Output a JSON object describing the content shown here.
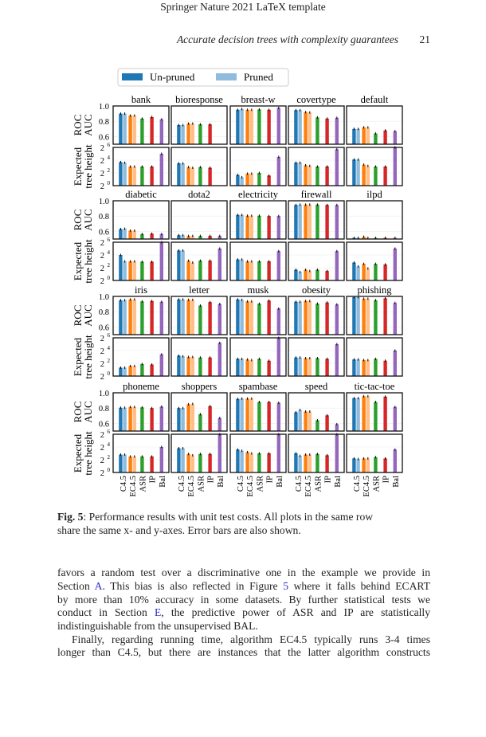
{
  "header": {
    "title": "Springer Nature 2021 LaTeX template",
    "running_head": "Accurate decision trees with complexity guarantees",
    "page_number": "21"
  },
  "caption": {
    "label": "Fig. 5",
    "text_line1": ": Performance results with unit test costs. All plots in the same row",
    "text_line2": "share the same x- and y-axes. Error bars are also shown."
  },
  "body": {
    "l1": "favors a random test over a discriminative one in the example we provide in",
    "l2a": "Section ",
    "l2_link1": "A",
    "l2b": ". This bias is also reflected in Figure ",
    "l2_link2": "5",
    "l2c": " where it falls behind ECART",
    "l3": "by more than 10% accuracy in some datasets. By further statistical tests we",
    "l4a": "conduct in Section ",
    "l4_link": "E",
    "l4b": ", the predictive power of ASR and IP are statistically",
    "l5": "indistinguishable from the unsupervised BAL.",
    "l6": "Finally, regarding running time, algorithm EC4.5 typically runs 3-4 times",
    "l7": "longer than C4.5, but there are instances that the latter algorithm constructs"
  },
  "chart_data": {
    "type": "bar",
    "legend": {
      "entries": [
        "Un-pruned",
        "Pruned"
      ],
      "placement": "top"
    },
    "categories": [
      "C4.5",
      "EC4.5",
      "ASR",
      "IP",
      "Bal"
    ],
    "bar_order": [
      "C4.5 un-pruned",
      "C4.5 pruned",
      "EC4.5 un-pruned",
      "EC4.5 pruned",
      "ASR",
      "IP",
      "Bal"
    ],
    "colors": {
      "C4.5": "#1f77b4",
      "C4.5_pruned": "#8fbbdc",
      "EC4.5": "#ff7f0e",
      "EC4.5_pruned": "#ffbf86",
      "ASR": "#2ca02c",
      "IP": "#d62728",
      "Bal": "#9467bd"
    },
    "auc_axis": {
      "label_line1": "ROC",
      "label_line2": "AUC",
      "ylim": [
        0.5,
        1.0
      ],
      "ticks": [
        "0.6",
        "0.8",
        "1.0"
      ],
      "tick_values": [
        0.6,
        0.8,
        1.0
      ]
    },
    "height_axis": {
      "label_line1": "Expected",
      "label_line2": "tree height",
      "scale": "log2",
      "ylim": [
        1,
        64
      ],
      "ticks": [
        "0",
        "2",
        "4",
        "6"
      ],
      "tick_values": [
        1,
        4,
        16,
        64
      ],
      "tick_base": "2"
    },
    "datasets": [
      {
        "name": "bank",
        "auc": [
          0.9,
          0.9,
          0.875,
          0.875,
          0.835,
          0.855,
          0.825
        ],
        "height": [
          13,
          12.1,
          8,
          8,
          8,
          8,
          32
        ]
      },
      {
        "name": "bioresponse",
        "auc": [
          0.75,
          0.75,
          0.77,
          0.77,
          0.76,
          0.76,
          null
        ],
        "height": [
          11.3,
          11.3,
          7.5,
          7,
          7.5,
          7,
          null
        ]
      },
      {
        "name": "breast-w",
        "auc": [
          0.95,
          0.96,
          0.95,
          0.95,
          0.955,
          0.95,
          0.975
        ],
        "height": [
          3.2,
          2.5,
          3.7,
          3.7,
          4,
          3,
          22.6
        ]
      },
      {
        "name": "covertype",
        "auc": [
          0.945,
          0.945,
          0.92,
          0.915,
          0.85,
          0.835,
          0.845
        ],
        "height": [
          12.1,
          12.1,
          9.2,
          8.6,
          8,
          8,
          52
        ]
      },
      {
        "name": "default",
        "auc": [
          0.7,
          0.7,
          0.72,
          0.72,
          0.64,
          0.68,
          0.67
        ],
        "height": [
          17.1,
          17.1,
          9.8,
          8.6,
          8,
          8,
          64
        ]
      },
      {
        "name": "diabetic",
        "auc": [
          0.63,
          0.635,
          0.61,
          0.61,
          0.565,
          0.57,
          0.565
        ],
        "height": [
          16,
          8,
          8,
          8,
          7.7,
          7.7,
          64
        ]
      },
      {
        "name": "dota2",
        "auc": [
          0.55,
          0.55,
          0.54,
          0.54,
          0.54,
          0.54,
          0.54
        ],
        "height": [
          26,
          26,
          8.6,
          7,
          8.6,
          8.6,
          32
        ]
      },
      {
        "name": "electricity",
        "auc": [
          0.815,
          0.815,
          0.805,
          0.805,
          0.805,
          0.8,
          0.8
        ],
        "height": [
          9.8,
          9.8,
          8,
          8,
          8,
          8,
          24.3
        ]
      },
      {
        "name": "firewall",
        "auc": [
          0.945,
          0.95,
          0.95,
          0.95,
          0.95,
          0.945,
          0.945
        ],
        "height": [
          3.2,
          2.5,
          3.2,
          2.8,
          3.2,
          2.8,
          24.3
        ]
      },
      {
        "name": "ilpd",
        "auc": [
          0.515,
          0.515,
          0.53,
          0.515,
          0.515,
          0.515,
          0.515
        ],
        "height": [
          7,
          4.6,
          6.1,
          3.7,
          6.1,
          5.7,
          32
        ]
      },
      {
        "name": "iris",
        "auc": [
          0.95,
          0.95,
          0.96,
          0.96,
          0.935,
          0.94,
          0.93
        ],
        "height": [
          2.5,
          2.5,
          3,
          3,
          3.7,
          3.5,
          10.6
        ]
      },
      {
        "name": "letter",
        "auc": [
          0.96,
          0.96,
          0.955,
          0.955,
          0.88,
          0.925,
          0.9
        ],
        "height": [
          9.2,
          8.6,
          8,
          8,
          7.5,
          7.5,
          36.8
        ]
      },
      {
        "name": "musk",
        "auc": [
          0.96,
          0.955,
          0.935,
          0.935,
          0.905,
          0.945,
          0.84
        ],
        "height": [
          6.5,
          6.5,
          6.1,
          5.7,
          6.5,
          5.3,
          64
        ]
      },
      {
        "name": "obesity",
        "auc": [
          0.93,
          0.93,
          0.94,
          0.94,
          0.905,
          0.92,
          0.895
        ],
        "height": [
          7.5,
          7.5,
          7,
          7,
          7,
          6.5,
          32
        ]
      },
      {
        "name": "phishing",
        "auc": [
          0.99,
          0.99,
          0.97,
          0.97,
          0.95,
          0.975,
          0.915
        ],
        "height": [
          6.1,
          6.1,
          5.7,
          5.7,
          6.5,
          5.3,
          16
        ]
      },
      {
        "name": "phoneme",
        "auc": [
          0.805,
          0.805,
          0.815,
          0.815,
          0.81,
          0.8,
          0.82
        ],
        "height": [
          7,
          7,
          5.7,
          5.7,
          5.7,
          5.7,
          16
        ]
      },
      {
        "name": "shoppers",
        "auc": [
          0.8,
          0.8,
          0.85,
          0.855,
          0.72,
          0.825,
          0.67
        ],
        "height": [
          13.9,
          13.9,
          7.5,
          6.5,
          7.5,
          7.5,
          64
        ]
      },
      {
        "name": "spambase",
        "auc": [
          0.92,
          0.925,
          0.925,
          0.925,
          0.88,
          0.88,
          0.87
        ],
        "height": [
          12.1,
          10.6,
          9.2,
          8,
          8,
          8,
          64
        ]
      },
      {
        "name": "speed",
        "auc": [
          0.745,
          0.775,
          0.755,
          0.755,
          0.64,
          0.705,
          0.59
        ],
        "height": [
          8,
          6.1,
          7,
          7,
          7.5,
          6.5,
          64
        ]
      },
      {
        "name": "tic-tac-toe",
        "auc": [
          0.93,
          0.93,
          0.955,
          0.955,
          0.88,
          0.95,
          0.815
        ],
        "height": [
          4.6,
          4.3,
          4.6,
          4.6,
          5.3,
          4.6,
          12.1
        ]
      }
    ]
  }
}
